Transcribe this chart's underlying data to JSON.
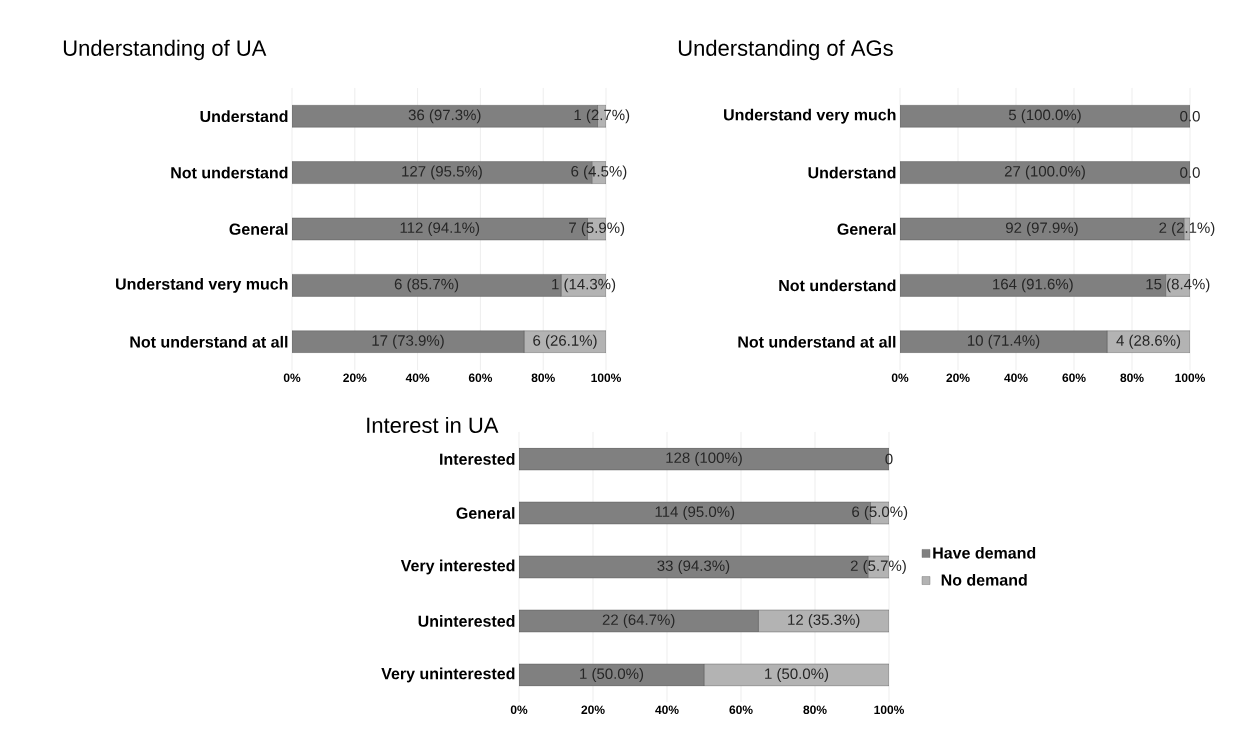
{
  "chart_data": [
    {
      "type": "bar",
      "orientation": "horizontal",
      "stacked": true,
      "title": "Understanding of UA",
      "categories": [
        "Understand",
        "Not understand",
        "General",
        "Understand very much",
        "Not understand at all"
      ],
      "series": [
        {
          "color": "#808080",
          "values": [
            97.3,
            95.5,
            94.1,
            85.7,
            73.9
          ],
          "value_labels": [
            "36 (97.3%)",
            "127 (95.5%)",
            "112 (94.1%)",
            "6 (85.7%)",
            "17 (73.9%)"
          ]
        },
        {
          "color": "#b3b3b3",
          "values": [
            2.7,
            4.5,
            5.9,
            14.3,
            26.1
          ],
          "value_labels": [
            "1 (2.7%)",
            "6 (4.5%)",
            "7 (5.9%)",
            "1 (14.3%)",
            "6 (26.1%)"
          ]
        }
      ],
      "xlim": [
        0,
        100
      ],
      "xticks": [
        {
          "value": 0,
          "label": "0%"
        },
        {
          "value": 20,
          "label": "20%"
        },
        {
          "value": 40,
          "label": "40%"
        },
        {
          "value": 60,
          "label": "60%"
        },
        {
          "value": 80,
          "label": "80%"
        },
        {
          "value": 100,
          "label": "100%"
        }
      ],
      "grid": "x"
    },
    {
      "type": "bar",
      "orientation": "horizontal",
      "stacked": true,
      "title": "Understanding of AGs",
      "categories": [
        "Understand very much",
        "Understand",
        "General",
        "Not understand",
        "Not understand at all"
      ],
      "series": [
        {
          "color": "#808080",
          "values": [
            100,
            100,
            97.9,
            91.6,
            71.4
          ],
          "value_labels": [
            "5 (100.0%)",
            "27 (100.0%)",
            "92 (97.9%)",
            "164 (91.6%)",
            "10 (71.4%)"
          ]
        },
        {
          "color": "#b3b3b3",
          "values": [
            0,
            0,
            2.1,
            8.4,
            28.6
          ],
          "value_labels": [
            "0.0",
            "0.0",
            "2 (2.1%)",
            "15 (8.4%)",
            "4 (28.6%)"
          ]
        }
      ],
      "xlim": [
        0,
        100
      ],
      "xticks": [
        {
          "value": 0,
          "label": "0%"
        },
        {
          "value": 20,
          "label": "20%"
        },
        {
          "value": 40,
          "label": "40%"
        },
        {
          "value": 60,
          "label": "60%"
        },
        {
          "value": 80,
          "label": "80%"
        },
        {
          "value": 100,
          "label": "100%"
        }
      ],
      "grid": "x"
    },
    {
      "type": "bar",
      "orientation": "horizontal",
      "stacked": true,
      "title": "Interest in UA",
      "categories": [
        "Interested",
        "General",
        "Very interested",
        "Uninterested",
        "Very uninterested"
      ],
      "series": [
        {
          "name": "Have demand",
          "color": "#808080",
          "values": [
            100,
            95.0,
            94.3,
            64.7,
            50.0
          ],
          "value_labels": [
            "128 (100%)",
            "114 (95.0%)",
            "33 (94.3%)",
            "22 (64.7%)",
            "1 (50.0%)"
          ]
        },
        {
          "name": "No demand",
          "color": "#b3b3b3",
          "values": [
            0,
            5.0,
            5.7,
            35.3,
            50.0
          ],
          "value_labels": [
            "0",
            "6 (5.0%)",
            "2 (5.7%)",
            "12 (35.3%)",
            "1 (50.0%)"
          ]
        }
      ],
      "xlim": [
        0,
        100
      ],
      "xticks": [
        {
          "value": 0,
          "label": "0%"
        },
        {
          "value": 20,
          "label": "20%"
        },
        {
          "value": 40,
          "label": "40%"
        },
        {
          "value": 60,
          "label": "60%"
        },
        {
          "value": 80,
          "label": "80%"
        },
        {
          "value": 100,
          "label": "100%"
        }
      ],
      "grid": "x",
      "legend": "right"
    }
  ]
}
